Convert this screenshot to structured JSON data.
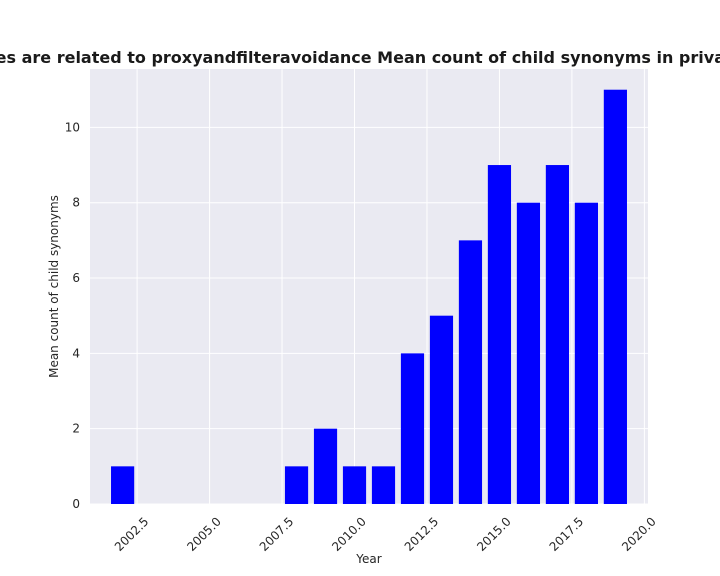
{
  "chart_data": {
    "type": "bar",
    "title": "Categories are related to proxyandfilteravoidance Mean count of child synonyms in privacy policies",
    "xlabel": "Year",
    "ylabel": "Mean count of child synonyms",
    "x": [
      2002,
      2008,
      2009,
      2010,
      2011,
      2012,
      2013,
      2014,
      2015,
      2016,
      2017,
      2018,
      2019
    ],
    "values": [
      1,
      1,
      2,
      1,
      1,
      4,
      5,
      7,
      9,
      8,
      9,
      8,
      11
    ],
    "bar_width": 0.8,
    "xlim": [
      2000.875,
      2020.125
    ],
    "ylim": [
      0,
      11.55
    ],
    "xticks": [
      2002.5,
      2005.0,
      2007.5,
      2010.0,
      2012.5,
      2015.0,
      2017.5,
      2020.0
    ],
    "xtick_labels": [
      "2002.5",
      "2005.0",
      "2007.5",
      "2010.0",
      "2012.5",
      "2015.0",
      "2017.5",
      "2020.0"
    ],
    "yticks": [
      0,
      2,
      4,
      6,
      8,
      10
    ],
    "ytick_labels": [
      "0",
      "2",
      "4",
      "6",
      "8",
      "10"
    ],
    "grid": true,
    "bar_color": "#0000ff",
    "plot_background": "#eaeaf2",
    "grid_color": "#ffffff"
  }
}
